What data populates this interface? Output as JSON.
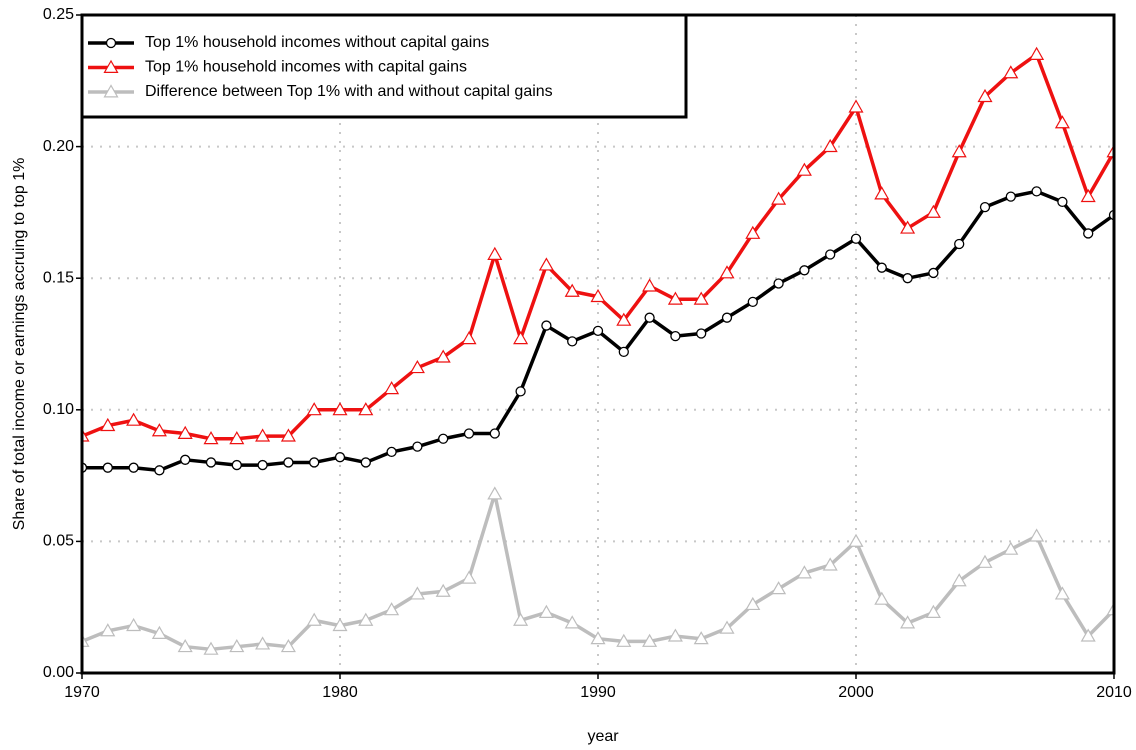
{
  "chart_data": {
    "type": "line",
    "xlabel": "year",
    "ylabel": "Share of total income or earnings accruing to top 1%",
    "x": [
      1970,
      1971,
      1972,
      1973,
      1974,
      1975,
      1976,
      1977,
      1978,
      1979,
      1980,
      1981,
      1982,
      1983,
      1984,
      1985,
      1986,
      1987,
      1988,
      1989,
      1990,
      1991,
      1992,
      1993,
      1994,
      1995,
      1996,
      1997,
      1998,
      1999,
      2000,
      2001,
      2002,
      2003,
      2004,
      2005,
      2006,
      2007,
      2008,
      2009,
      2010
    ],
    "series": [
      {
        "name": "Top 1% household incomes without capital gains",
        "color": "#000000",
        "marker": "circle",
        "values": [
          0.078,
          0.078,
          0.078,
          0.077,
          0.081,
          0.08,
          0.079,
          0.079,
          0.08,
          0.08,
          0.082,
          0.08,
          0.084,
          0.086,
          0.089,
          0.091,
          0.091,
          0.107,
          0.132,
          0.126,
          0.13,
          0.122,
          0.135,
          0.128,
          0.129,
          0.135,
          0.141,
          0.148,
          0.153,
          0.159,
          0.165,
          0.154,
          0.15,
          0.152,
          0.163,
          0.177,
          0.181,
          0.183,
          0.179,
          0.167,
          0.174
        ]
      },
      {
        "name": "Top 1% household incomes with capital gains",
        "color": "#ee1111",
        "marker": "triangle",
        "values": [
          0.09,
          0.094,
          0.096,
          0.092,
          0.091,
          0.089,
          0.089,
          0.09,
          0.09,
          0.1,
          0.1,
          0.1,
          0.108,
          0.116,
          0.12,
          0.127,
          0.159,
          0.127,
          0.155,
          0.145,
          0.143,
          0.134,
          0.147,
          0.142,
          0.142,
          0.152,
          0.167,
          0.18,
          0.191,
          0.2,
          0.215,
          0.182,
          0.169,
          0.175,
          0.198,
          0.219,
          0.228,
          0.235,
          0.209,
          0.181,
          0.198
        ]
      },
      {
        "name": "Difference between Top 1% with and without capital gains",
        "color": "#bdbdbd",
        "marker": "triangle",
        "values": [
          0.012,
          0.016,
          0.018,
          0.015,
          0.01,
          0.009,
          0.01,
          0.011,
          0.01,
          0.02,
          0.018,
          0.02,
          0.024,
          0.03,
          0.031,
          0.036,
          0.068,
          0.02,
          0.023,
          0.019,
          0.013,
          0.012,
          0.012,
          0.014,
          0.013,
          0.017,
          0.026,
          0.032,
          0.038,
          0.041,
          0.05,
          0.028,
          0.019,
          0.023,
          0.035,
          0.042,
          0.047,
          0.052,
          0.03,
          0.014,
          0.024
        ]
      }
    ],
    "xlim": [
      1970,
      2010
    ],
    "xticks": [
      1970,
      1980,
      1990,
      2000,
      2010
    ],
    "ylim": [
      0,
      0.25
    ],
    "yticks": [
      {
        "value": 0,
        "label": "0.00"
      },
      0.05,
      {
        "value": 0.1,
        "label": "0.10"
      },
      0.15,
      {
        "value": 0.2,
        "label": "0.20"
      },
      0.25
    ],
    "grid": true,
    "legend": "top-left"
  }
}
